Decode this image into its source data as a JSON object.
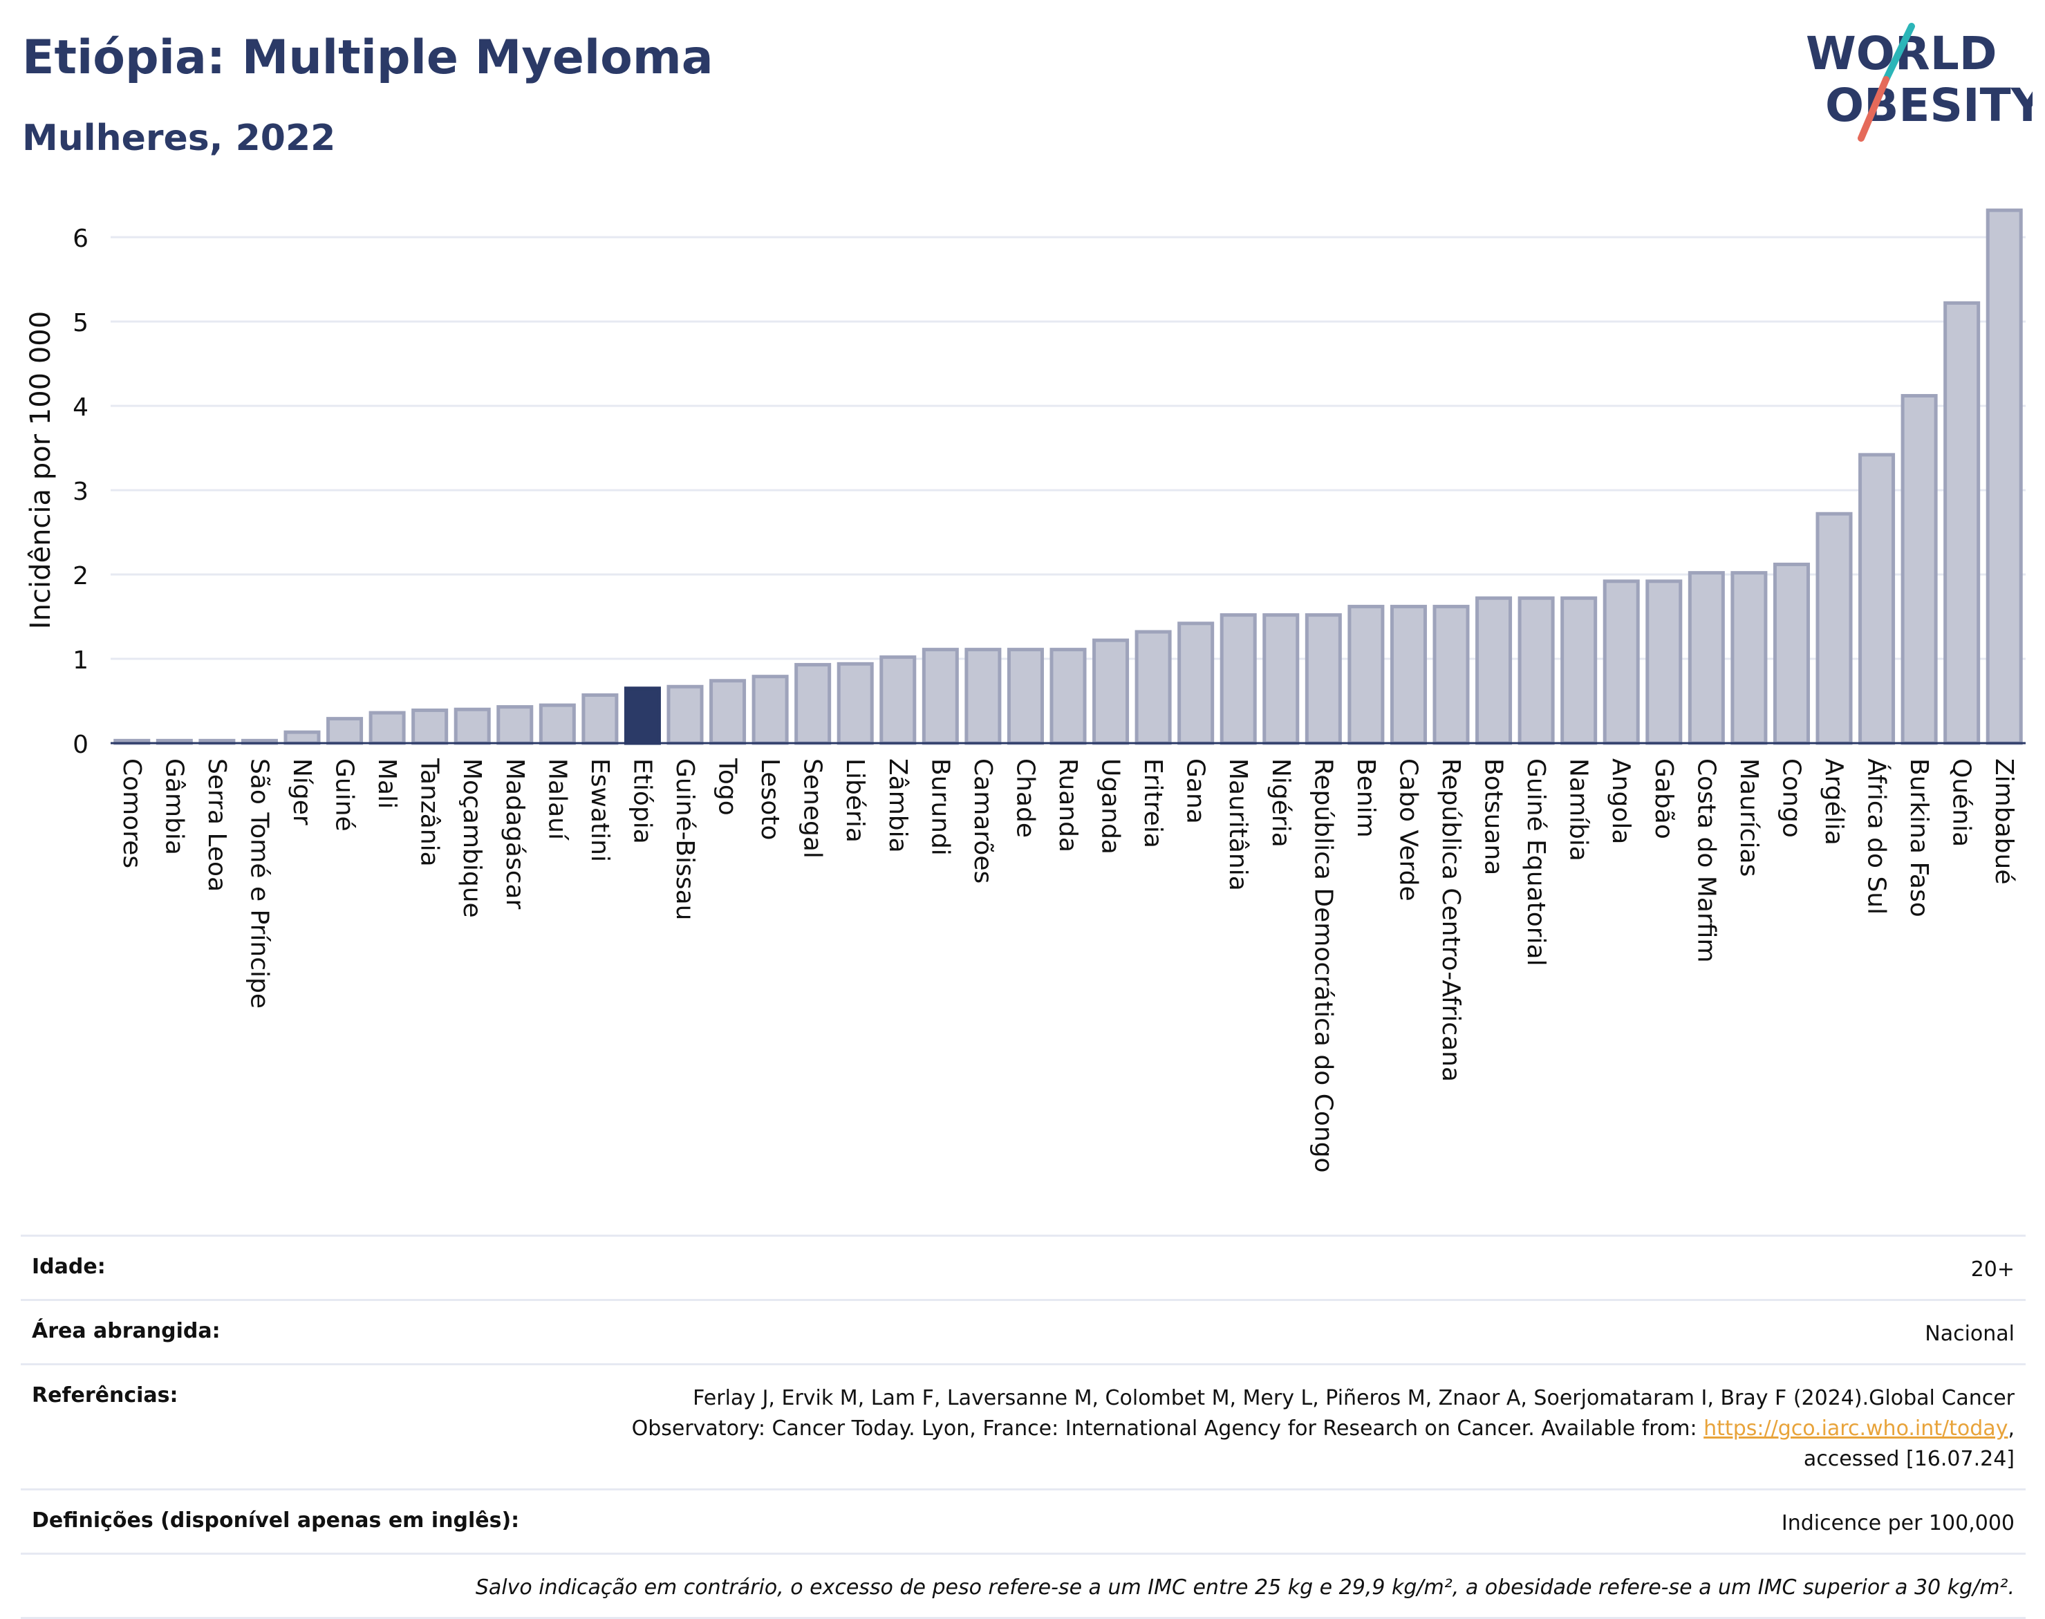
{
  "header": {
    "title": "Etiópia: Multiple Myeloma",
    "subtitle": "Mulheres, 2022"
  },
  "logo": {
    "line1": "WORLD",
    "line2": "OBESITY"
  },
  "colors": {
    "highlight": "#2b3a67",
    "bar_fill": "#c3c6d4",
    "bar_stroke": "#9ea3bb",
    "gridline": "#e6e9f2",
    "axis": "#2b3a67",
    "logo_slash_top": "#2bb5b8",
    "logo_slash_bottom": "#e56a5a"
  },
  "chart_data": {
    "type": "bar",
    "ylabel": "Incidência por 100 000",
    "xlabel": "",
    "ylim": [
      0,
      6.6
    ],
    "yticks": [
      0,
      1,
      2,
      3,
      4,
      5,
      6
    ],
    "grid": true,
    "highlight": "Etiópia",
    "categories": [
      "Comores",
      "Gâmbia",
      "Serra Leoa",
      "São Tomé e Príncipe",
      "Níger",
      "Guiné",
      "Mali",
      "Tanzânia",
      "Moçambique",
      "Madagáscar",
      "Malauí",
      "Eswatini",
      "Etiópia",
      "Guiné-Bissau",
      "Togo",
      "Lesoto",
      "Senegal",
      "Libéria",
      "Zâmbia",
      "Burundi",
      "Camarões",
      "Chade",
      "Ruanda",
      "Uganda",
      "Eritreia",
      "Gana",
      "Mauritânia",
      "Nigéria",
      "República Democrática do Congo",
      "Benim",
      "Cabo Verde",
      "República Centro-Africana",
      "Botsuana",
      "Guiné Equatorial",
      "Namíbia",
      "Angola",
      "Gabão",
      "Costa do Marfim",
      "Maurícias",
      "Congo",
      "Argélia",
      "África do Sul",
      "Burkina Faso",
      "Quénia",
      "Zimbabué"
    ],
    "values": [
      0.03,
      0.03,
      0.03,
      0.03,
      0.13,
      0.29,
      0.36,
      0.39,
      0.4,
      0.43,
      0.45,
      0.57,
      0.65,
      0.67,
      0.74,
      0.79,
      0.93,
      0.94,
      1.02,
      1.11,
      1.11,
      1.11,
      1.11,
      1.22,
      1.32,
      1.42,
      1.52,
      1.52,
      1.52,
      1.62,
      1.62,
      1.62,
      1.72,
      1.72,
      1.72,
      1.92,
      1.92,
      2.02,
      2.02,
      2.12,
      2.72,
      3.42,
      4.12,
      5.22,
      6.32
    ]
  },
  "info": {
    "idade_label": "Idade:",
    "idade_value": "20+",
    "area_label": "Área abrangida:",
    "area_value": "Nacional",
    "ref_label": "Referências:",
    "ref_line1": "Ferlay J, Ervik M, Lam F, Laversanne M, Colombet M, Mery L, Piñeros M, Znaor A, Soerjomataram I, Bray F (2024).Global Cancer",
    "ref_line2_pre": "Observatory: Cancer Today. Lyon, France: International Agency for Research on Cancer. Available from: ",
    "ref_link": "https://gco.iarc.who.int/today",
    "ref_line2_post": ",",
    "ref_line3": "accessed [16.07.24]",
    "def_label": "Definições (disponível apenas em inglês):",
    "def_value": "Indicence per 100,000",
    "note": "Salvo indicação em contrário, o excesso de peso refere-se a um IMC entre 25 kg e 29,9 kg/m², a obesidade refere-se a um IMC superior a 30 kg/m²."
  }
}
